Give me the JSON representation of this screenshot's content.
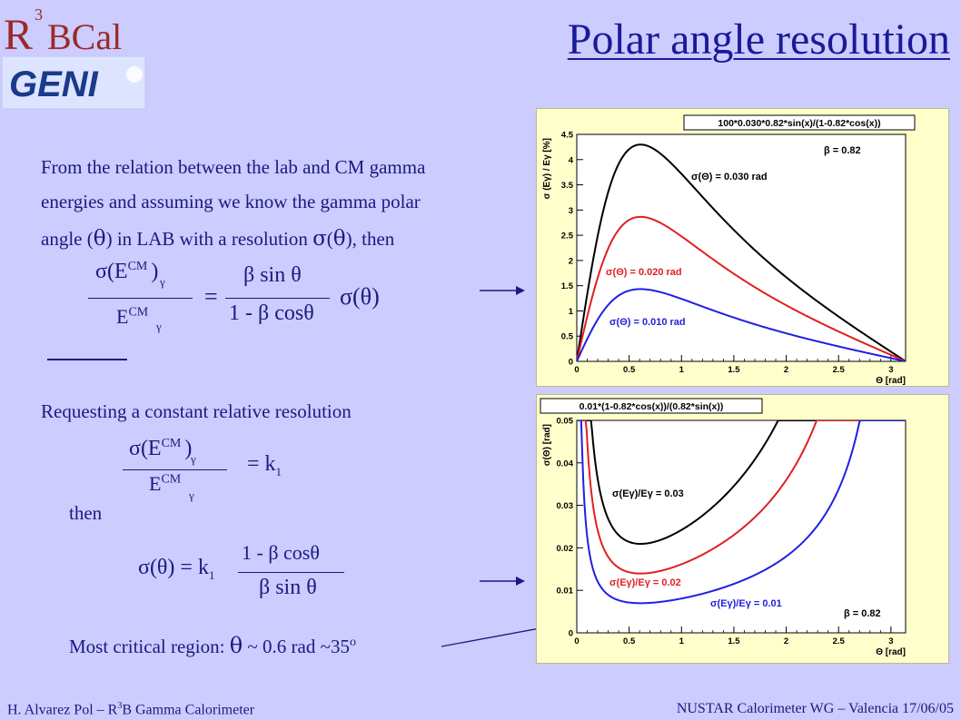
{
  "title": "Polar angle resolution",
  "logo": {
    "r3b": "R3BCal",
    "geni": "GENI"
  },
  "intro": {
    "line1": "From the relation between the lab and CM gamma",
    "line2": "energies and assuming we know the gamma polar",
    "line3_a": "angle (",
    "theta": "θ",
    "line3_b": ") in LAB with a resolution ",
    "sigma": "σ",
    "line3_c": "), then"
  },
  "eq1": {
    "num": "σ(E",
    "cm": "CM",
    "gamma": "γ",
    "close": ")",
    "den": "E",
    "equals": "=",
    "rhs_num": "β sin θ",
    "rhs_den": "1 - β cosθ",
    "rhs_tail": "σ(θ)"
  },
  "request_text": "Requesting a constant relative resolution",
  "eq2": {
    "rhs": "= k",
    "sub": "1"
  },
  "then_text": "then",
  "eq3": {
    "lhs": "σ(θ) = k",
    "sub": "1",
    "num": "1 - β cosθ",
    "den": "β sin θ"
  },
  "critical": {
    "label": "Most critical region:",
    "theta": "θ",
    "value": " ~ 0.6 rad ~35",
    "deg": "o"
  },
  "footer": {
    "left_a": "H. Alvarez Pol – R",
    "left_sup": "3",
    "left_b": "B Gamma Calorimeter",
    "right": "NUSTAR Calorimeter WG – Valencia 17/06/05"
  },
  "chart_data": [
    {
      "type": "line",
      "title": "100*0.030*0.82*sin(x)/(1-0.82*cos(x))",
      "ylabel": "σ (Eγ) / Eγ [%]",
      "xlabel": "Θ [rad]",
      "xlim": [
        0,
        3.14
      ],
      "ylim": [
        0,
        4.5
      ],
      "xticks": [
        "0",
        "0.5",
        "1",
        "1.5",
        "2",
        "2.5",
        "3"
      ],
      "yticks": [
        "0",
        "0.5",
        "1",
        "1.5",
        "2",
        "2.5",
        "3",
        "3.5",
        "4",
        "4.5"
      ],
      "beta_label": "β = 0.82",
      "series": [
        {
          "name": "σ(Θ) = 0.030 rad",
          "color": "#000000",
          "sigma": 0.03
        },
        {
          "name": "σ(Θ) = 0.020 rad",
          "color": "#e02020",
          "sigma": 0.02
        },
        {
          "name": "σ(Θ) = 0.010 rad",
          "color": "#2020e0",
          "sigma": 0.01
        }
      ]
    },
    {
      "type": "line",
      "title": "0.01*(1-0.82*cos(x))/(0.82*sin(x))",
      "ylabel": "σ(Θ) [rad]",
      "xlabel": "Θ [rad]",
      "xlim": [
        0,
        3.14
      ],
      "ylim": [
        0,
        0.05
      ],
      "xticks": [
        "0",
        "0.5",
        "1",
        "1.5",
        "2",
        "2.5",
        "3"
      ],
      "yticks": [
        "0",
        "0.01",
        "0.02",
        "0.03",
        "0.04",
        "0.05"
      ],
      "beta_label": "β = 0.82",
      "series": [
        {
          "name": "σ(Eγ)/Eγ = 0.03",
          "color": "#000000",
          "k": 0.03
        },
        {
          "name": "σ(Eγ)/Eγ = 0.02",
          "color": "#e02020",
          "k": 0.02
        },
        {
          "name": "σ(Eγ)/Eγ = 0.01",
          "color": "#2020e0",
          "k": 0.01
        }
      ]
    }
  ]
}
